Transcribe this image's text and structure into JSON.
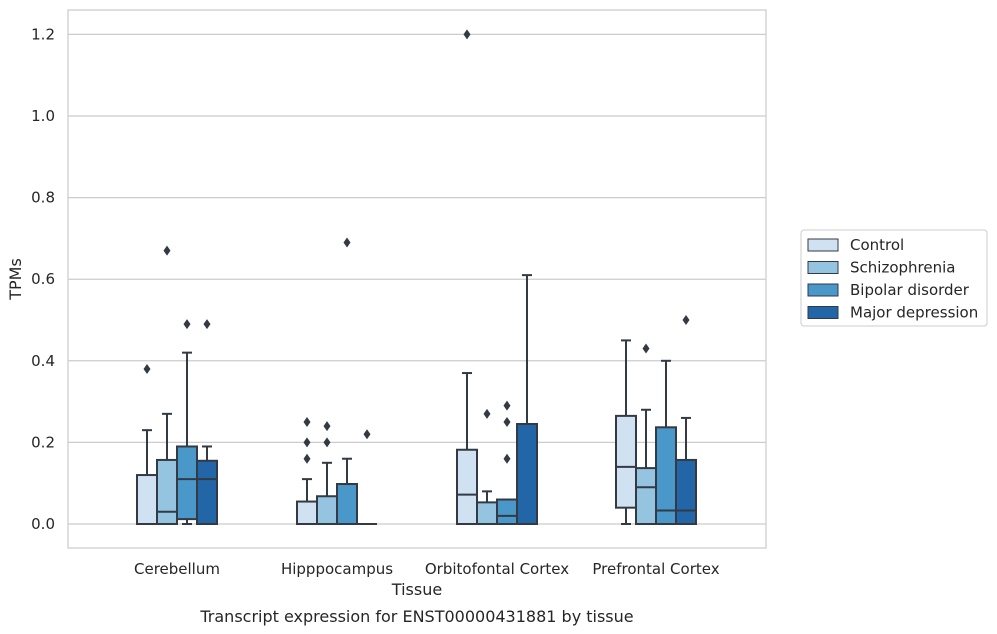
{
  "chart_data": {
    "type": "box",
    "title": "",
    "caption": "Transcript expression for ENST00000431881 by tissue",
    "xlabel": "Tissue",
    "ylabel": "TPMs",
    "ylim": [
      -0.06,
      1.26
    ],
    "yticks": [
      "0.0",
      "0.2",
      "0.4",
      "0.6",
      "0.8",
      "1.0",
      "1.2"
    ],
    "ytick_values": [
      0,
      0.2,
      0.4,
      0.6,
      0.8,
      1.0,
      1.2
    ],
    "grid": "horizontal",
    "legend_position": "right",
    "categories": [
      "Cerebellum",
      "Hipppocampus",
      "Orbitofontal Cortex",
      "Prefrontal Cortex"
    ],
    "series": [
      {
        "name": "Control",
        "color": "#d0e1f2",
        "boxes": [
          {
            "whislo": 0,
            "q1": 0,
            "med": 0,
            "q3": 0.12,
            "whishi": 0.23,
            "fliers": [
              0.38
            ]
          },
          {
            "whislo": 0,
            "q1": 0,
            "med": 0,
            "q3": 0.055,
            "whishi": 0.11,
            "fliers": [
              0.16,
              0.2,
              0.25
            ]
          },
          {
            "whislo": 0,
            "q1": 0,
            "med": 0.072,
            "q3": 0.182,
            "whishi": 0.37,
            "fliers": [
              1.2
            ]
          },
          {
            "whislo": 0,
            "q1": 0.04,
            "med": 0.14,
            "q3": 0.265,
            "whishi": 0.45,
            "fliers": []
          }
        ]
      },
      {
        "name": "Schizophrenia",
        "color": "#94c4df",
        "boxes": [
          {
            "whislo": 0,
            "q1": 0,
            "med": 0.03,
            "q3": 0.157,
            "whishi": 0.27,
            "fliers": [
              0.67
            ]
          },
          {
            "whislo": 0,
            "q1": 0,
            "med": 0,
            "q3": 0.068,
            "whishi": 0.15,
            "fliers": [
              0.2,
              0.24
            ]
          },
          {
            "whislo": 0,
            "q1": 0,
            "med": 0,
            "q3": 0.053,
            "whishi": 0.08,
            "fliers": [
              0.27
            ]
          },
          {
            "whislo": 0,
            "q1": 0,
            "med": 0.09,
            "q3": 0.137,
            "whishi": 0.28,
            "fliers": [
              0.43
            ]
          }
        ]
      },
      {
        "name": "Bipolar disorder",
        "color": "#4a98c9",
        "boxes": [
          {
            "whislo": 0,
            "q1": 0.012,
            "med": 0.11,
            "q3": 0.19,
            "whishi": 0.42,
            "fliers": [
              0.49
            ]
          },
          {
            "whislo": 0,
            "q1": 0,
            "med": 0,
            "q3": 0.098,
            "whishi": 0.16,
            "fliers": [
              0.69
            ]
          },
          {
            "whislo": 0,
            "q1": 0,
            "med": 0.02,
            "q3": 0.06,
            "whishi": 0.06,
            "fliers": [
              0.16,
              0.25,
              0.29
            ]
          },
          {
            "whislo": 0,
            "q1": 0,
            "med": 0.033,
            "q3": 0.237,
            "whishi": 0.4,
            "fliers": []
          }
        ]
      },
      {
        "name": "Major depression",
        "color": "#2366a8",
        "boxes": [
          {
            "whislo": 0,
            "q1": 0,
            "med": 0.11,
            "q3": 0.155,
            "whishi": 0.19,
            "fliers": [
              0.49
            ]
          },
          {
            "whislo": 0,
            "q1": 0,
            "med": 0,
            "q3": 0,
            "whishi": 0,
            "fliers": [
              0.22
            ]
          },
          {
            "whislo": 0,
            "q1": 0,
            "med": 0.245,
            "q3": 0.245,
            "whishi": 0.61,
            "fliers": []
          },
          {
            "whislo": 0,
            "q1": 0,
            "med": 0.033,
            "q3": 0.157,
            "whishi": 0.26,
            "fliers": [
              0.5
            ]
          }
        ]
      }
    ]
  }
}
